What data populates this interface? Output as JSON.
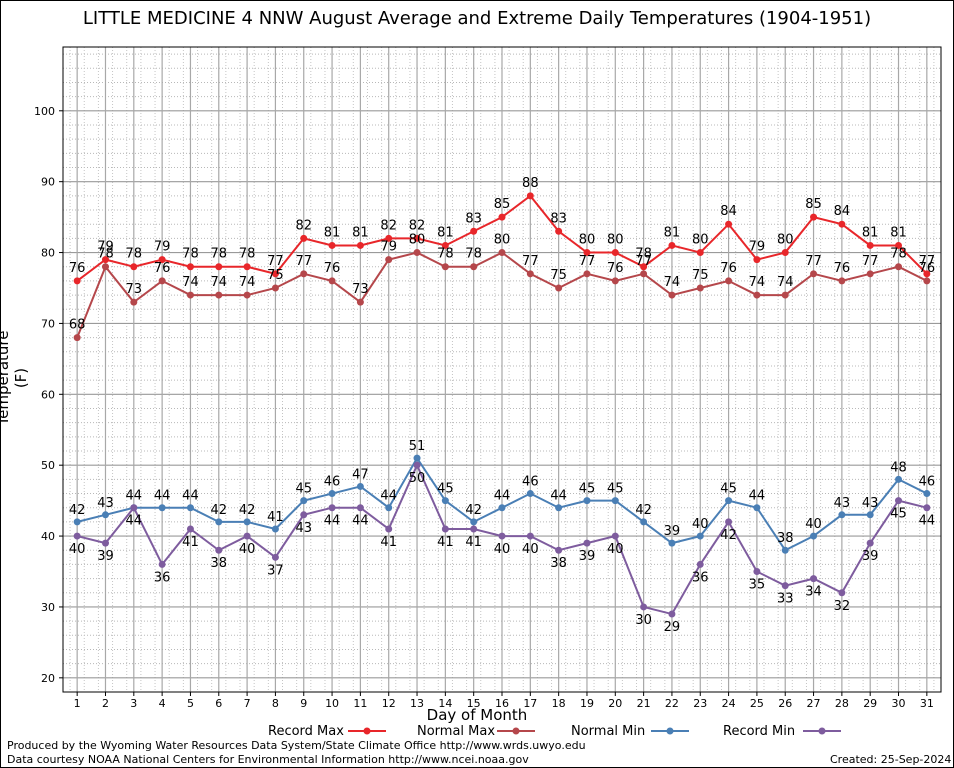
{
  "chart_data": {
    "type": "line",
    "title": "LITTLE MEDICINE 4 NNW August Average and Extreme Daily Temperatures (1904-1951)",
    "xlabel": "Day of Month",
    "ylabel": "Temperature (F)",
    "x": [
      1,
      2,
      3,
      4,
      5,
      6,
      7,
      8,
      9,
      10,
      11,
      12,
      13,
      14,
      15,
      16,
      17,
      18,
      19,
      20,
      21,
      22,
      23,
      24,
      25,
      26,
      27,
      28,
      29,
      30,
      31
    ],
    "xlim": [
      0.5,
      31.5
    ],
    "ylim": [
      18,
      109
    ],
    "yticks": [
      20,
      30,
      40,
      50,
      60,
      70,
      80,
      90,
      100
    ],
    "grid": true,
    "legend_position": "bottom",
    "series": [
      {
        "name": "Record Max",
        "color": "#e8262a",
        "values": [
          76,
          79,
          78,
          79,
          78,
          78,
          78,
          77,
          82,
          81,
          81,
          82,
          82,
          81,
          83,
          85,
          88,
          83,
          80,
          80,
          78,
          81,
          80,
          84,
          79,
          80,
          85,
          84,
          81,
          81,
          77
        ]
      },
      {
        "name": "Normal Max",
        "color": "#b5474b",
        "values": [
          68,
          78,
          73,
          76,
          74,
          74,
          74,
          75,
          77,
          76,
          73,
          79,
          80,
          78,
          78,
          80,
          77,
          75,
          77,
          76,
          77,
          74,
          75,
          76,
          74,
          74,
          77,
          76,
          77,
          78,
          76
        ]
      },
      {
        "name": "Normal Min",
        "color": "#4a7fb5",
        "values": [
          42,
          43,
          44,
          44,
          44,
          42,
          42,
          41,
          45,
          46,
          47,
          44,
          51,
          45,
          42,
          44,
          46,
          44,
          45,
          45,
          42,
          39,
          40,
          45,
          44,
          38,
          40,
          43,
          43,
          48,
          46
        ]
      },
      {
        "name": "Record Min",
        "color": "#7e5c9e",
        "values": [
          40,
          39,
          44,
          36,
          41,
          38,
          40,
          37,
          43,
          44,
          44,
          41,
          50,
          41,
          41,
          40,
          40,
          38,
          39,
          40,
          30,
          29,
          36,
          42,
          35,
          33,
          34,
          32,
          39,
          45,
          44
        ]
      }
    ]
  },
  "footer": {
    "produced_by": "Produced by the Wyoming Water Resources Data System/State Climate Office http://www.wrds.uwyo.edu",
    "courtesy": "Data courtesy NOAA National Centers for Environmental Information http://www.ncei.noaa.gov",
    "created": "Created:  25-Sep-2024"
  }
}
